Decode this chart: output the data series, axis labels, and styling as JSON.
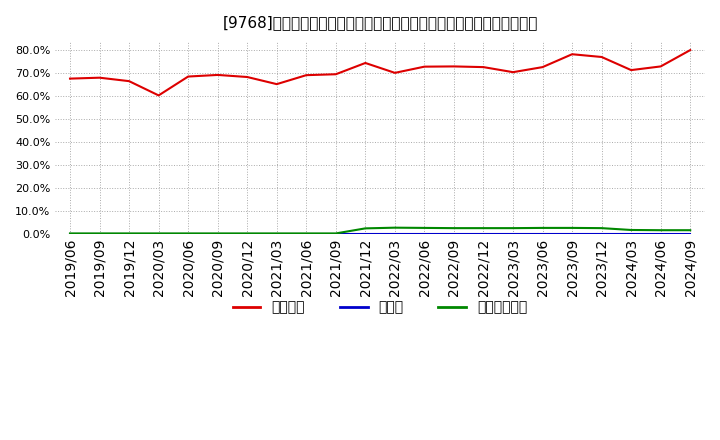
{
  "title": "[9768]　自己資本、のれん、繰延税金資産の総資産に対する比率の推移",
  "x_labels": [
    "2019/06",
    "2019/09",
    "2019/12",
    "2020/03",
    "2020/06",
    "2020/09",
    "2020/12",
    "2021/03",
    "2021/06",
    "2021/09",
    "2021/12",
    "2022/03",
    "2022/06",
    "2022/09",
    "2022/12",
    "2023/03",
    "2023/06",
    "2023/09",
    "2023/12",
    "2024/03",
    "2024/06",
    "2024/09"
  ],
  "jiko_shihon": [
    0.676,
    0.68,
    0.665,
    0.603,
    0.685,
    0.692,
    0.683,
    0.652,
    0.691,
    0.695,
    0.744,
    0.701,
    0.728,
    0.729,
    0.726,
    0.704,
    0.726,
    0.782,
    0.77,
    0.713,
    0.729,
    0.8
  ],
  "noren": [
    0.002,
    0.002,
    0.002,
    0.002,
    0.002,
    0.002,
    0.002,
    0.002,
    0.002,
    0.002,
    0.002,
    0.002,
    0.002,
    0.002,
    0.002,
    0.002,
    0.002,
    0.002,
    0.002,
    0.002,
    0.002,
    0.002
  ],
  "kurinobe": [
    0.003,
    0.003,
    0.003,
    0.003,
    0.003,
    0.003,
    0.003,
    0.003,
    0.003,
    0.003,
    0.025,
    0.028,
    0.027,
    0.026,
    0.026,
    0.026,
    0.027,
    0.027,
    0.026,
    0.018,
    0.017,
    0.017
  ],
  "jiko_color": "#dd0000",
  "noren_color": "#0000cc",
  "kurinobe_color": "#008800",
  "bg_color": "#ffffff",
  "plot_bg_color": "#ffffff",
  "grid_color": "#aaaaaa",
  "legend_labels": [
    "自己資本",
    "のれん",
    "繰延税金資産"
  ],
  "ylim": [
    0.0,
    0.84
  ],
  "yticks": [
    0.0,
    0.1,
    0.2,
    0.3,
    0.4,
    0.5,
    0.6,
    0.7,
    0.8
  ]
}
